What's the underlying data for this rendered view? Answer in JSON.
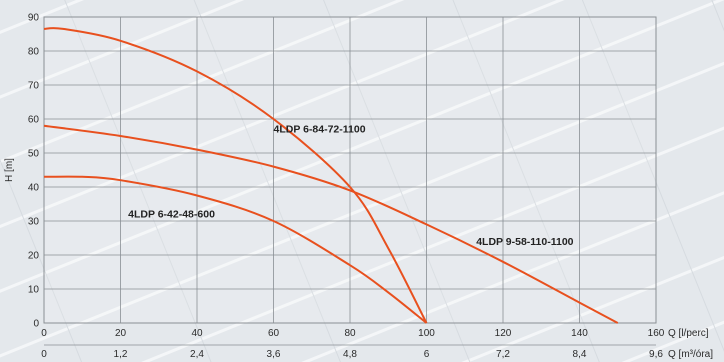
{
  "chart_data": {
    "type": "line",
    "xlabel": "Q [l/perc]",
    "xlabel_secondary": "Q [m³/óra]",
    "ylabel": "H [m]",
    "xlim": [
      0,
      160
    ],
    "ylim": [
      0,
      90
    ],
    "x_ticks": [
      "0",
      "20",
      "40",
      "60",
      "80",
      "100",
      "120",
      "140",
      "160"
    ],
    "x_ticks_secondary": [
      "0",
      "1,2",
      "2,4",
      "3,6",
      "4,8",
      "6",
      "7,2",
      "8,4",
      "9,6"
    ],
    "y_ticks": [
      "0",
      "10",
      "20",
      "30",
      "40",
      "50",
      "60",
      "70",
      "80",
      "90"
    ],
    "grid": true,
    "line_color": "#e8501e",
    "series": [
      {
        "name": "4LDP 6-84-72-1100",
        "x": [
          0,
          5,
          20,
          40,
          60,
          80,
          90,
          100
        ],
        "y": [
          86.5,
          86.5,
          83,
          74,
          60,
          40,
          22,
          0
        ]
      },
      {
        "name": "4LDP 9-58-110-1100",
        "x": [
          0,
          20,
          40,
          60,
          80,
          100,
          120,
          140,
          150
        ],
        "y": [
          58,
          55,
          51,
          46,
          39,
          29,
          18,
          6,
          0
        ]
      },
      {
        "name": "4LDP 6-42-48-600",
        "x": [
          0,
          10,
          20,
          40,
          60,
          80,
          90,
          100
        ],
        "y": [
          43,
          43,
          42,
          37.5,
          30,
          17,
          9,
          0
        ]
      }
    ]
  }
}
